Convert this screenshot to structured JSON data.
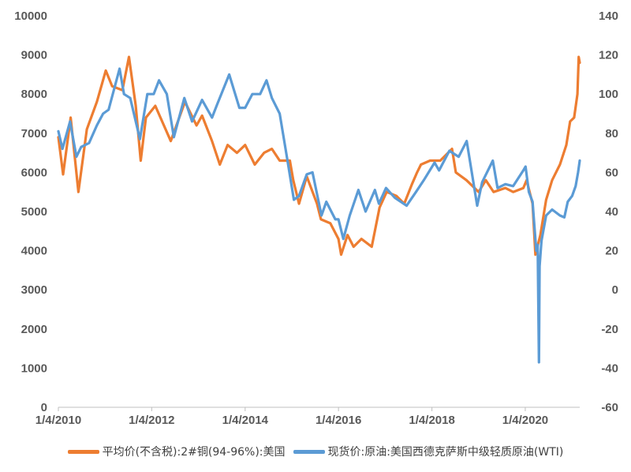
{
  "chart_data": {
    "type": "line",
    "x_tick_labels": [
      "1/4/2010",
      "1/4/2012",
      "1/4/2014",
      "1/4/2016",
      "1/4/2018",
      "1/4/2020"
    ],
    "x_range": [
      "2010-01-04",
      "2021-03-05"
    ],
    "left_axis": {
      "ticks": [
        "0",
        "1000",
        "2000",
        "3000",
        "4000",
        "5000",
        "6000",
        "7000",
        "8000",
        "9000",
        "10000"
      ],
      "ylim": [
        0,
        10000
      ]
    },
    "right_axis": {
      "ticks": [
        "-60",
        "-40",
        "-20",
        "0",
        "20",
        "40",
        "60",
        "80",
        "100",
        "120",
        "140"
      ],
      "ylim": [
        -60,
        140
      ]
    },
    "grid": false,
    "legend_position": "bottom",
    "series": [
      {
        "name": "平均价(不含税):2#铜(94-96%):美国",
        "axis": "left",
        "color": "#ED7D31",
        "points": [
          [
            "2010-01-04",
            6900
          ],
          [
            "2010-02-10",
            5950
          ],
          [
            "2010-04-10",
            7400
          ],
          [
            "2010-06-10",
            5500
          ],
          [
            "2010-08-15",
            7100
          ],
          [
            "2010-11-01",
            7800
          ],
          [
            "2011-01-10",
            8600
          ],
          [
            "2011-03-01",
            8200
          ],
          [
            "2011-05-20",
            8100
          ],
          [
            "2011-07-10",
            8950
          ],
          [
            "2011-09-01",
            7700
          ],
          [
            "2011-10-10",
            6300
          ],
          [
            "2011-11-20",
            7400
          ],
          [
            "2012-02-01",
            7700
          ],
          [
            "2012-06-01",
            6800
          ],
          [
            "2012-09-20",
            7800
          ],
          [
            "2012-12-20",
            7200
          ],
          [
            "2013-02-01",
            7450
          ],
          [
            "2013-04-20",
            6800
          ],
          [
            "2013-06-20",
            6200
          ],
          [
            "2013-08-20",
            6700
          ],
          [
            "2013-11-01",
            6500
          ],
          [
            "2014-01-04",
            6700
          ],
          [
            "2014-03-20",
            6200
          ],
          [
            "2014-06-01",
            6500
          ],
          [
            "2014-08-01",
            6600
          ],
          [
            "2014-10-01",
            6300
          ],
          [
            "2014-12-20",
            6300
          ],
          [
            "2015-01-15",
            5800
          ],
          [
            "2015-03-01",
            5200
          ],
          [
            "2015-05-01",
            5900
          ],
          [
            "2015-07-20",
            5200
          ],
          [
            "2015-08-20",
            4800
          ],
          [
            "2015-11-01",
            4700
          ],
          [
            "2016-01-04",
            4300
          ],
          [
            "2016-01-25",
            3900
          ],
          [
            "2016-03-15",
            4400
          ],
          [
            "2016-05-01",
            4100
          ],
          [
            "2016-07-01",
            4300
          ],
          [
            "2016-09-20",
            4100
          ],
          [
            "2016-11-20",
            5100
          ],
          [
            "2017-01-15",
            5500
          ],
          [
            "2017-04-01",
            5400
          ],
          [
            "2017-06-01",
            5200
          ],
          [
            "2017-08-01",
            5700
          ],
          [
            "2017-09-10",
            6000
          ],
          [
            "2017-10-10",
            6200
          ],
          [
            "2017-12-20",
            6300
          ],
          [
            "2018-03-10",
            6300
          ],
          [
            "2018-06-10",
            6600
          ],
          [
            "2018-07-10",
            6000
          ],
          [
            "2018-10-01",
            5800
          ],
          [
            "2019-01-04",
            5500
          ],
          [
            "2019-03-01",
            5800
          ],
          [
            "2019-05-01",
            5500
          ],
          [
            "2019-08-01",
            5600
          ],
          [
            "2019-10-01",
            5500
          ],
          [
            "2019-12-20",
            5600
          ],
          [
            "2020-01-15",
            5800
          ],
          [
            "2020-03-01",
            5200
          ],
          [
            "2020-03-23",
            3900
          ],
          [
            "2020-05-01",
            4400
          ],
          [
            "2020-06-15",
            5300
          ],
          [
            "2020-08-01",
            5800
          ],
          [
            "2020-10-01",
            6200
          ],
          [
            "2020-11-20",
            6700
          ],
          [
            "2020-12-20",
            7300
          ],
          [
            "2021-01-20",
            7400
          ],
          [
            "2021-02-15",
            8000
          ],
          [
            "2021-02-25",
            8950
          ],
          [
            "2021-03-05",
            8800
          ]
        ]
      },
      {
        "name": "现货价:原油:美国西德克萨斯中级轻质原油(WTI)",
        "axis": "right",
        "color": "#5B9BD5",
        "points": [
          [
            "2010-01-04",
            81
          ],
          [
            "2010-02-05",
            72
          ],
          [
            "2010-04-05",
            86
          ],
          [
            "2010-05-25",
            68
          ],
          [
            "2010-07-01",
            73
          ],
          [
            "2010-09-01",
            75
          ],
          [
            "2010-11-01",
            84
          ],
          [
            "2010-12-20",
            90
          ],
          [
            "2011-02-01",
            92
          ],
          [
            "2011-04-28",
            113
          ],
          [
            "2011-06-01",
            100
          ],
          [
            "2011-07-20",
            98
          ],
          [
            "2011-10-04",
            77
          ],
          [
            "2011-12-01",
            100
          ],
          [
            "2012-01-20",
            100
          ],
          [
            "2012-03-01",
            107
          ],
          [
            "2012-05-01",
            100
          ],
          [
            "2012-06-25",
            78
          ],
          [
            "2012-09-15",
            98
          ],
          [
            "2012-11-15",
            86
          ],
          [
            "2013-02-01",
            97
          ],
          [
            "2013-04-20",
            88
          ],
          [
            "2013-06-01",
            95
          ],
          [
            "2013-09-01",
            110
          ],
          [
            "2013-11-20",
            93
          ],
          [
            "2014-01-04",
            93
          ],
          [
            "2014-03-01",
            100
          ],
          [
            "2014-05-01",
            100
          ],
          [
            "2014-06-20",
            107
          ],
          [
            "2014-08-01",
            98
          ],
          [
            "2014-10-01",
            90
          ],
          [
            "2014-12-01",
            66
          ],
          [
            "2015-01-20",
            46
          ],
          [
            "2015-03-01",
            48
          ],
          [
            "2015-05-01",
            59
          ],
          [
            "2015-06-15",
            60
          ],
          [
            "2015-08-24",
            38
          ],
          [
            "2015-10-01",
            45
          ],
          [
            "2015-12-10",
            36
          ],
          [
            "2016-01-04",
            36
          ],
          [
            "2016-02-11",
            26
          ],
          [
            "2016-04-01",
            38
          ],
          [
            "2016-06-08",
            51
          ],
          [
            "2016-08-03",
            40
          ],
          [
            "2016-10-15",
            51
          ],
          [
            "2016-11-15",
            44
          ],
          [
            "2017-01-10",
            52
          ],
          [
            "2017-03-20",
            47
          ],
          [
            "2017-06-20",
            43
          ],
          [
            "2017-09-01",
            50
          ],
          [
            "2017-11-01",
            56
          ],
          [
            "2018-01-25",
            65
          ],
          [
            "2018-03-01",
            61
          ],
          [
            "2018-05-20",
            71
          ],
          [
            "2018-08-01",
            68
          ],
          [
            "2018-10-03",
            76
          ],
          [
            "2018-12-24",
            43
          ],
          [
            "2019-02-01",
            55
          ],
          [
            "2019-04-25",
            66
          ],
          [
            "2019-06-01",
            52
          ],
          [
            "2019-08-01",
            54
          ],
          [
            "2019-10-01",
            53
          ],
          [
            "2019-12-20",
            61
          ],
          [
            "2020-01-06",
            63
          ],
          [
            "2020-02-01",
            50
          ],
          [
            "2020-03-01",
            45
          ],
          [
            "2020-03-30",
            20
          ],
          [
            "2020-04-10",
            23
          ],
          [
            "2020-04-20",
            -37
          ],
          [
            "2020-04-25",
            12
          ],
          [
            "2020-05-10",
            25
          ],
          [
            "2020-06-15",
            38
          ],
          [
            "2020-08-01",
            41
          ],
          [
            "2020-10-01",
            38
          ],
          [
            "2020-11-05",
            37
          ],
          [
            "2020-12-01",
            45
          ],
          [
            "2021-01-05",
            48
          ],
          [
            "2021-02-01",
            53
          ],
          [
            "2021-02-20",
            60
          ],
          [
            "2021-03-05",
            66
          ]
        ]
      }
    ]
  }
}
